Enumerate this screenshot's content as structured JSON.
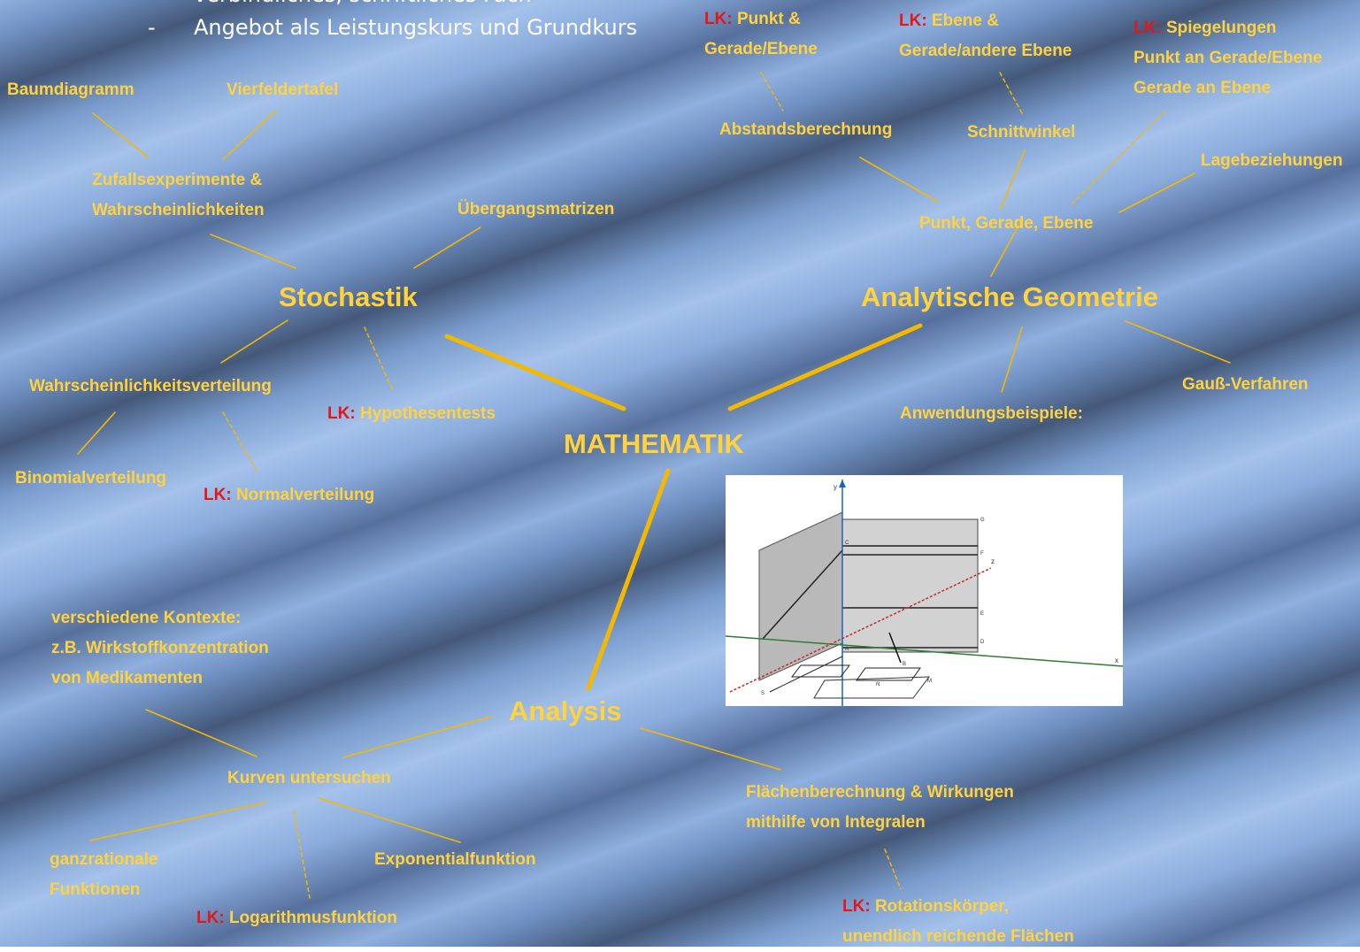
{
  "header": {
    "bullet_1": "verbindliches, schriftliches Fach",
    "dash": "-",
    "bullet_2": "Angebot als Leistungskurs und Grundkurs"
  },
  "center": "MATHEMATIK",
  "lk_prefix": "LK:",
  "stochastik": {
    "title": "Stochastik",
    "baum": "Baumdiagramm",
    "vierfelder": "Vierfeldertafel",
    "zufall_1": "Zufallsexperimente &",
    "zufall_2": "Wahrscheinlichkeiten",
    "uebergang": "Übergangsmatrizen",
    "verteilung": "Wahrscheinlichkeitsverteilung",
    "hypothesen": "Hypothesentests",
    "binomial": "Binomialverteilung",
    "normal": "Normalverteilung"
  },
  "geometrie": {
    "title": "Analytische Geometrie",
    "punkt_1": "Punkt &",
    "punkt_2": "Gerade/Ebene",
    "ebene_1": "Ebene &",
    "ebene_2": "Gerade/andere Ebene",
    "spiegel_1": "Spiegelungen",
    "spiegel_2": "Punkt an Gerade/Ebene",
    "spiegel_3": "Gerade an Ebene",
    "abstand": "Abstandsberechnung",
    "schnitt": "Schnittwinkel",
    "lage": "Lagebeziehungen",
    "pge": "Punkt, Gerade, Ebene",
    "gauss": "Gauß-Verfahren",
    "anwendung": "Anwendungsbeispiele:"
  },
  "analysis": {
    "title": "Analysis",
    "kontext_1": "verschiedene Kontexte:",
    "kontext_2": "z.B. Wirkstoffkonzentration",
    "kontext_3": "von Medikamenten",
    "kurven": "Kurven untersuchen",
    "ganz_1": "ganzrationale",
    "ganz_2": "Funktionen",
    "expo": "Exponentialfunktion",
    "log": "Logarithmusfunktion",
    "flaeche_1": "Flächenberechnung & Wirkungen",
    "flaeche_2": "mithilfe von Integralen",
    "rot_1": "Rotationskörper,",
    "rot_2": "unendlich reichende Flächen"
  },
  "figure": {
    "axis_x": "x",
    "axis_y": "y",
    "axis_z": "z",
    "points": [
      "G",
      "F",
      "E",
      "D",
      "C",
      "B",
      "A",
      "M",
      "N",
      "S"
    ]
  },
  "colors": {
    "label": "#ffd23e",
    "lk": "#e8141a",
    "connector": "#f5b800",
    "header": "#ffffff"
  }
}
